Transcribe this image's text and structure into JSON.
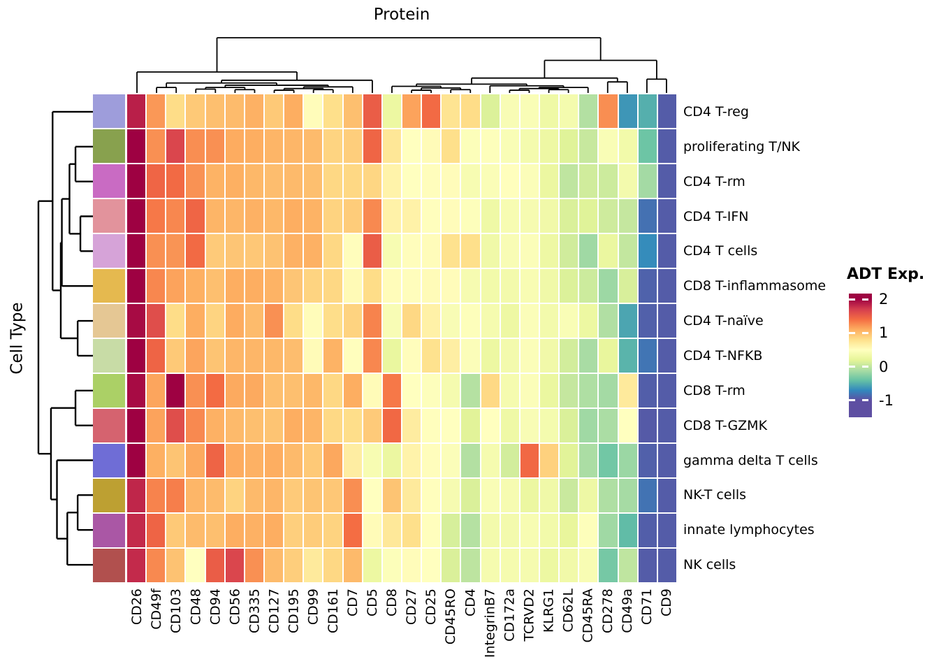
{
  "title": "Protein",
  "row_axis_title": "Cell Type",
  "legend": {
    "title": "ADT Exp.",
    "tick_values": [
      2,
      1,
      0,
      -1
    ],
    "tick_labels": [
      "2",
      "1",
      "0",
      "-1"
    ]
  },
  "colormap": {
    "name": "spectral-reversed",
    "domain": [
      -1,
      2
    ],
    "anchor_values": [
      2,
      1.7,
      1.4,
      1.1,
      0.8,
      0.5,
      0.2,
      -0.1,
      -0.4,
      -0.7,
      -1
    ],
    "anchor_colors": [
      "#9e0142",
      "#d53e4f",
      "#f46d43",
      "#fdae61",
      "#fee08b",
      "#ffffbf",
      "#e6f598",
      "#abdda4",
      "#66c2a5",
      "#3288bd",
      "#5e4fa2"
    ]
  },
  "chart_data": {
    "type": "heatmap",
    "title": "Protein",
    "ylabel": "Cell Type",
    "legend_title": "ADT Exp.",
    "columns": [
      "CD26",
      "CD49f",
      "CD103",
      "CD48",
      "CD94",
      "CD56",
      "CD335",
      "CD127",
      "CD195",
      "CD99",
      "CD161",
      "CD7",
      "CD5",
      "CD8",
      "CD27",
      "CD25",
      "CD45RO",
      "CD4",
      "IntegrinB7",
      "CD172a",
      "TCRVD2",
      "KLRG1",
      "CD62L",
      "CD45RA",
      "CD278",
      "CD49a",
      "CD71",
      "CD9"
    ],
    "rows": [
      {
        "label": "CD4 T-reg",
        "annotation_color": "#9e9ddb"
      },
      {
        "label": "proliferating T/NK",
        "annotation_color": "#88a14e"
      },
      {
        "label": "CD4 T-rm",
        "annotation_color": "#c96bc3"
      },
      {
        "label": "CD4 T-IFN",
        "annotation_color": "#e2939c"
      },
      {
        "label": "CD4 T cells",
        "annotation_color": "#d6a3d8"
      },
      {
        "label": "CD8 T-inflammasome",
        "annotation_color": "#e5b94f"
      },
      {
        "label": "CD4 T-naïve",
        "annotation_color": "#e5c794"
      },
      {
        "label": "CD4 T-NFKB",
        "annotation_color": "#c8dca6"
      },
      {
        "label": "CD8 T-rm",
        "annotation_color": "#abd066"
      },
      {
        "label": "CD8 T-GZMK",
        "annotation_color": "#d5636f"
      },
      {
        "label": "gamma delta T cells",
        "annotation_color": "#6f6dd6"
      },
      {
        "label": "NK-T cells",
        "annotation_color": "#bda032"
      },
      {
        "label": "innate lymphocytes",
        "annotation_color": "#aa57a5"
      },
      {
        "label": "NK cells",
        "annotation_color": "#b1504e"
      }
    ],
    "values": [
      [
        1.85,
        1.2,
        0.82,
        0.94,
        1.0,
        1.02,
        1.08,
        0.94,
        1.1,
        0.53,
        0.8,
        1.0,
        1.5,
        0.28,
        1.15,
        1.42,
        0.76,
        0.82,
        0.15,
        0.42,
        0.43,
        0.31,
        0.37,
        -0.06,
        1.25,
        -0.63,
        -0.5,
        -0.93
      ],
      [
        2.0,
        1.24,
        1.65,
        1.25,
        1.24,
        1.11,
        1.1,
        1.06,
        1.05,
        1.02,
        0.87,
        0.91,
        1.45,
        0.73,
        0.5,
        0.54,
        0.8,
        0.46,
        0.47,
        0.43,
        0.37,
        0.29,
        0.17,
        0.04,
        0.43,
        0.34,
        -0.37,
        -0.93
      ],
      [
        2.0,
        1.45,
        1.42,
        1.23,
        1.07,
        1.09,
        1.04,
        1.01,
        1.03,
        1.0,
        0.85,
        0.85,
        0.86,
        0.62,
        0.5,
        0.52,
        0.53,
        0.4,
        0.44,
        0.51,
        0.45,
        0.27,
        0.0,
        0.09,
        0.07,
        0.36,
        -0.13,
        -0.93
      ],
      [
        2.0,
        1.35,
        1.28,
        1.45,
        1.06,
        1.05,
        1.08,
        1.04,
        1.1,
        1.07,
        0.88,
        0.92,
        1.27,
        0.63,
        0.63,
        0.51,
        0.53,
        0.47,
        0.31,
        0.4,
        0.39,
        0.33,
        0.14,
        0.17,
        0.08,
        0.03,
        -0.82,
        -0.93
      ],
      [
        2.0,
        1.24,
        1.22,
        1.42,
        0.93,
        0.96,
        0.95,
        0.98,
        1.08,
        1.08,
        0.85,
        0.52,
        1.5,
        0.4,
        0.52,
        0.53,
        0.78,
        0.8,
        0.32,
        0.42,
        0.45,
        0.29,
        0.09,
        -0.15,
        0.26,
        0.02,
        -0.68,
        -0.93
      ],
      [
        2.0,
        1.28,
        1.15,
        1.09,
        1.0,
        1.1,
        1.1,
        1.07,
        0.96,
        0.87,
        0.85,
        0.55,
        0.82,
        0.53,
        0.52,
        0.54,
        0.53,
        0.39,
        0.34,
        0.35,
        0.41,
        0.32,
        0.15,
        0.07,
        -0.16,
        0.13,
        -0.9,
        -0.93
      ],
      [
        1.95,
        1.6,
        0.82,
        1.1,
        0.87,
        1.11,
        1.02,
        1.24,
        0.82,
        0.53,
        0.81,
        0.88,
        1.3,
        0.42,
        0.85,
        0.64,
        0.42,
        0.47,
        0.38,
        0.29,
        0.45,
        0.35,
        0.43,
        0.28,
        -0.07,
        -0.55,
        -0.91,
        -0.93
      ],
      [
        2.0,
        1.46,
        0.94,
        1.14,
        0.97,
        1.05,
        1.05,
        1.04,
        1.01,
        0.54,
        1.07,
        0.51,
        1.28,
        0.25,
        0.52,
        0.78,
        0.66,
        0.45,
        0.28,
        0.36,
        0.45,
        0.33,
        0.1,
        -0.11,
        0.24,
        -0.47,
        -0.8,
        -0.93
      ],
      [
        1.95,
        1.14,
        2.0,
        1.24,
        1.41,
        1.12,
        1.12,
        1.0,
        1.0,
        1.04,
        0.85,
        1.1,
        0.54,
        1.35,
        0.5,
        0.48,
        0.38,
        -0.05,
        0.84,
        0.38,
        0.45,
        0.26,
        0.03,
        -0.08,
        -0.13,
        0.7,
        -0.92,
        -0.93
      ],
      [
        2.0,
        1.15,
        1.6,
        1.27,
        1.08,
        1.03,
        1.0,
        0.97,
        1.1,
        1.06,
        0.84,
        0.81,
        0.93,
        1.43,
        0.68,
        0.51,
        0.5,
        0.18,
        0.5,
        0.31,
        0.42,
        0.37,
        0.14,
        -0.15,
        -0.1,
        0.5,
        -0.94,
        -0.93
      ],
      [
        2.0,
        1.09,
        0.97,
        1.12,
        1.46,
        1.11,
        1.08,
        1.1,
        1.03,
        0.94,
        1.13,
        0.67,
        0.4,
        0.27,
        0.62,
        0.52,
        0.45,
        -0.06,
        0.38,
        0.1,
        1.43,
        0.89,
        0.18,
        -0.1,
        -0.35,
        -0.17,
        -0.91,
        -0.93
      ],
      [
        1.82,
        1.3,
        1.32,
        1.05,
        1.02,
        0.88,
        1.03,
        1.05,
        0.93,
        0.97,
        0.95,
        1.25,
        0.5,
        0.97,
        0.7,
        0.51,
        0.39,
        0.14,
        0.43,
        0.39,
        0.27,
        0.32,
        0.05,
        0.3,
        -0.08,
        -0.12,
        -0.81,
        -0.93
      ],
      [
        1.8,
        1.46,
        0.94,
        1.02,
        1.0,
        1.1,
        1.08,
        1.1,
        0.9,
        0.92,
        0.88,
        1.4,
        0.54,
        0.72,
        0.8,
        0.51,
        0.12,
        -0.05,
        0.35,
        0.36,
        0.4,
        0.34,
        0.23,
        0.47,
        -0.15,
        -0.43,
        -0.92,
        -0.93
      ],
      [
        1.8,
        1.27,
        0.98,
        0.5,
        1.5,
        1.65,
        1.24,
        1.02,
        0.91,
        0.7,
        0.85,
        1.03,
        0.28,
        0.46,
        0.53,
        0.5,
        0.14,
        -0.01,
        0.38,
        0.38,
        0.38,
        0.28,
        0.33,
        0.41,
        -0.33,
        0.0,
        -0.93,
        -0.93
      ]
    ],
    "col_dendrogram": [
      1.0,
      [
        0.38,
        0,
        [
          0.23,
          [
            0.18,
            [
              0.1,
              1,
              2
            ],
            [
              0.14,
              [
                0.1,
                [
                  0.07,
                  3,
                  4
                ],
                [
                  0.06,
                  5,
                  6
                ]
              ],
              [
                0.11,
                [
                  0.08,
                  [
                    0.05,
                    7,
                    8
                  ],
                  [
                    0.06,
                    9,
                    10
                  ]
                ],
                11
              ]
            ]
          ],
          12
        ]
      ],
      [
        0.59,
        [
          0.27,
          [
            0.16,
            [
              0.12,
              13,
              [
                0.09,
                [
                  0.05,
                  14,
                  15
                ],
                [
                  0.06,
                  16,
                  17
                ]
              ]
            ],
            [
              0.13,
              18,
              [
                0.1,
                [
                  0.08,
                  [
                    0.05,
                    19,
                    20
                  ],
                  [
                    0.06,
                    21,
                    22
                  ]
                ],
                23
              ]
            ]
          ],
          [
            0.2,
            24,
            25
          ]
        ],
        [
          0.25,
          26,
          27
        ]
      ]
    ],
    "row_dendrogram": [
      1.0,
      [
        0.74,
        0,
        [
          0.59,
          [
            0.57,
            [
              0.43,
              [
                0.32,
                1,
                2
              ],
              [
                0.23,
                3,
                4
              ]
            ],
            5
          ],
          [
            0.28,
            6,
            7
          ]
        ]
      ],
      [
        0.77,
        [
          0.32,
          8,
          9
        ],
        [
          0.66,
          10,
          [
            0.47,
            [
              0.28,
              11,
              12
            ],
            13
          ]
        ]
      ]
    ]
  }
}
